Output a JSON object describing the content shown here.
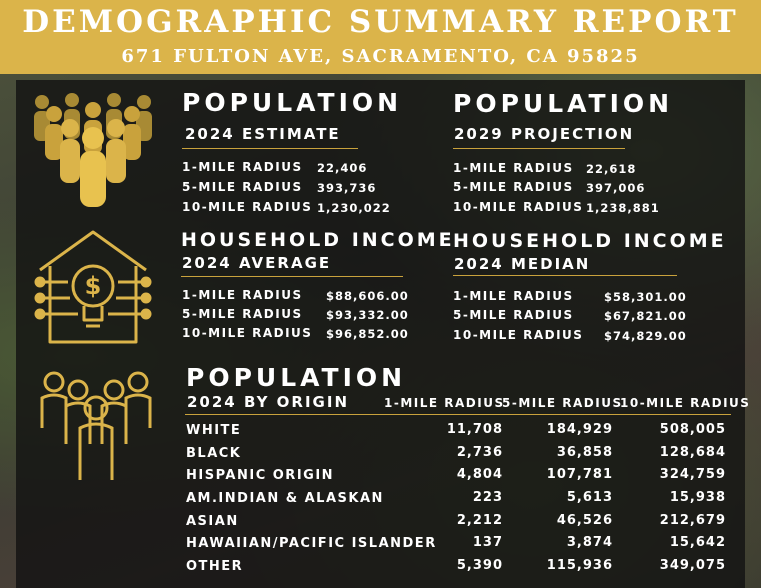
{
  "header": {
    "title": "DEMOGRAPHIC SUMMARY REPORT",
    "address": "671 FULTON AVE, SACRAMENTO, CA 95825"
  },
  "icons": {
    "population": "crowd-icon",
    "income": "house-lightbulb-dollar-icon",
    "origin": "group-people-icon",
    "accent_color": "#dbb44a"
  },
  "pop2024": {
    "title": "POPULATION",
    "subtitle": "2024 ESTIMATE",
    "rows": [
      {
        "label": "1-MILE RADIUS",
        "value": "22,406"
      },
      {
        "label": "5-MILE RADIUS",
        "value": "393,736"
      },
      {
        "label": "10-MILE RADIUS",
        "value": "1,230,022"
      }
    ]
  },
  "pop2029": {
    "title": "POPULATION",
    "subtitle": "2029 PROJECTION",
    "rows": [
      {
        "label": "1-MILE RADIUS",
        "value": "22,618"
      },
      {
        "label": "5-MILE RADIUS",
        "value": "397,006"
      },
      {
        "label": "10-MILE RADIUS",
        "value": "1,238,881"
      }
    ]
  },
  "incAvg": {
    "title": "HOUSEHOLD INCOME",
    "subtitle": "2024 AVERAGE",
    "rows": [
      {
        "label": "1-MILE RADIUS",
        "value": "$88,606.00"
      },
      {
        "label": "5-MILE RADIUS",
        "value": "$93,332.00"
      },
      {
        "label": "10-MILE RADIUS",
        "value": "$96,852.00"
      }
    ]
  },
  "incMed": {
    "title": "HOUSEHOLD INCOME",
    "subtitle": "2024 MEDIAN",
    "rows": [
      {
        "label": "1-MILE RADIUS",
        "value": "$58,301.00"
      },
      {
        "label": "5-MILE RADIUS",
        "value": "$67,821.00"
      },
      {
        "label": "10-MILE RADIUS",
        "value": "$74,829.00"
      }
    ]
  },
  "origin": {
    "title": "POPULATION",
    "subtitle": "2024 BY ORIGIN",
    "columns": [
      "1-MILE RADIUS",
      "5-MILE RADIUS",
      "10-MILE RADIUS"
    ],
    "rows": [
      {
        "label": "WHITE",
        "v1": "11,708",
        "v5": "184,929",
        "v10": "508,005"
      },
      {
        "label": "BLACK",
        "v1": "2,736",
        "v5": "36,858",
        "v10": "128,684"
      },
      {
        "label": "HISPANIC ORIGIN",
        "v1": "4,804",
        "v5": "107,781",
        "v10": "324,759"
      },
      {
        "label": "AM.INDIAN & ALASKAN",
        "v1": "223",
        "v5": "5,613",
        "v10": "15,938"
      },
      {
        "label": "ASIAN",
        "v1": "2,212",
        "v5": "46,526",
        "v10": "212,679"
      },
      {
        "label": "HAWAIIAN/PACIFIC ISLANDER",
        "v1": "137",
        "v5": "3,874",
        "v10": "15,642"
      },
      {
        "label": "OTHER",
        "v1": "5,390",
        "v5": "115,936",
        "v10": "349,075"
      }
    ]
  }
}
